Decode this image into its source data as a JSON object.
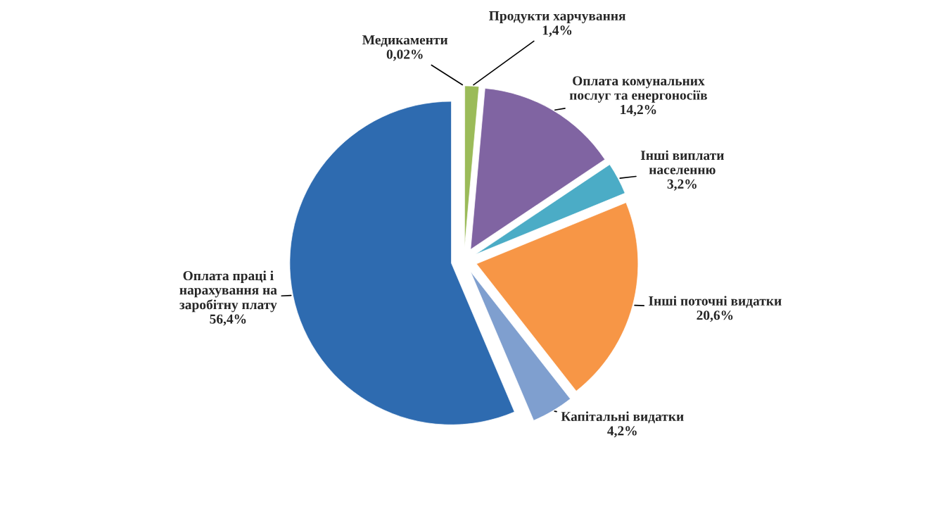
{
  "chart_data": {
    "type": "pie",
    "categories": [
      "Медикаменти",
      "Продукти харчування",
      "Оплата комунальних\nпослуг та енергоносіїв",
      "Інші виплати\nнаселенню",
      "Інші поточні видатки",
      "Капітальні видатки",
      "Оплата праці і\nнарахування на\nзаробітну плату"
    ],
    "values": [
      0.02,
      1.4,
      14.2,
      3.2,
      20.6,
      4.2,
      56.4
    ],
    "value_labels": [
      "0,02%",
      "1,4%",
      "14,2%",
      "3,2%",
      "20,6%",
      "4,2%",
      "56,4%"
    ],
    "colors": [
      "#c0504d",
      "#9bbb59",
      "#8064a2",
      "#4bacc6",
      "#f79646",
      "#7f9fcf",
      "#2e6bb0"
    ],
    "legend": false
  }
}
